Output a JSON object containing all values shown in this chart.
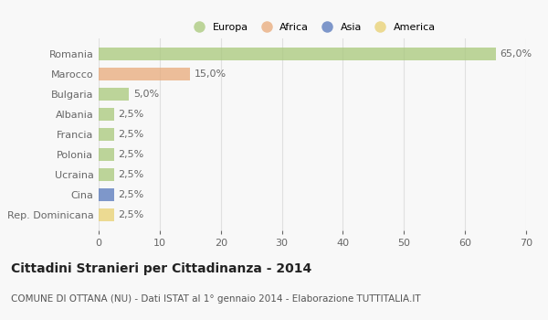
{
  "countries": [
    "Romania",
    "Marocco",
    "Bulgaria",
    "Albania",
    "Francia",
    "Polonia",
    "Ucraina",
    "Cina",
    "Rep. Dominicana"
  ],
  "values": [
    65.0,
    15.0,
    5.0,
    2.5,
    2.5,
    2.5,
    2.5,
    2.5,
    2.5
  ],
  "labels": [
    "65,0%",
    "15,0%",
    "5,0%",
    "2,5%",
    "2,5%",
    "2,5%",
    "2,5%",
    "2,5%",
    "2,5%"
  ],
  "continents": [
    "Europa",
    "Africa",
    "Europa",
    "Europa",
    "Europa",
    "Europa",
    "Europa",
    "Asia",
    "America"
  ],
  "continent_colors": {
    "Europa": "#a8c87a",
    "Africa": "#e8aa7a",
    "Asia": "#5577bb",
    "America": "#e8d070"
  },
  "legend_entries": [
    "Europa",
    "Africa",
    "Asia",
    "America"
  ],
  "legend_colors": [
    "#a8c87a",
    "#e8aa7a",
    "#5577bb",
    "#e8d070"
  ],
  "xlim": [
    0,
    70
  ],
  "xticks": [
    0,
    10,
    20,
    30,
    40,
    50,
    60,
    70
  ],
  "title": "Cittadini Stranieri per Cittadinanza - 2014",
  "subtitle": "COMUNE DI OTTANA (NU) - Dati ISTAT al 1° gennaio 2014 - Elaborazione TUTTITALIA.IT",
  "background_color": "#f8f8f8",
  "grid_color": "#e0e0e0",
  "bar_height": 0.65,
  "label_fontsize": 8,
  "tick_fontsize": 8,
  "title_fontsize": 10,
  "subtitle_fontsize": 7.5,
  "bar_alpha": 0.75
}
